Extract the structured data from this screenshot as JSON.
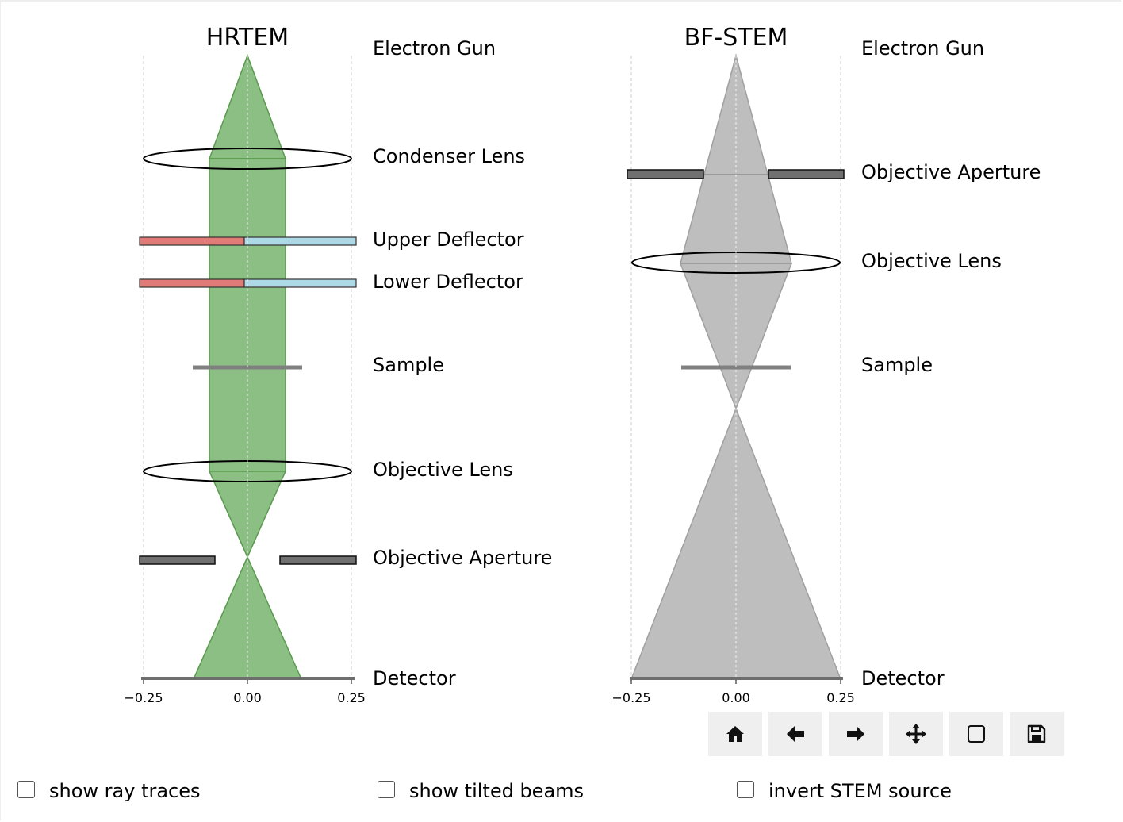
{
  "panels": [
    {
      "title": "HRTEM",
      "components": [
        {
          "label": "Electron Gun"
        },
        {
          "label": "Condenser Lens"
        },
        {
          "label": "Upper Deflector"
        },
        {
          "label": "Lower Deflector"
        },
        {
          "label": "Sample"
        },
        {
          "label": "Objective Lens"
        },
        {
          "label": "Objective Aperture"
        },
        {
          "label": "Detector"
        }
      ],
      "x_ticks": [
        "−0.25",
        "0.00",
        "0.25"
      ]
    },
    {
      "title": "BF-STEM",
      "components": [
        {
          "label": "Electron Gun"
        },
        {
          "label": "Objective Aperture"
        },
        {
          "label": "Objective Lens"
        },
        {
          "label": "Sample"
        },
        {
          "label": "Detector"
        }
      ],
      "x_ticks": [
        "−0.25",
        "0.00",
        "0.25"
      ]
    }
  ],
  "colors": {
    "hrtem_beam": "#8cbf84",
    "hrtem_beam_edge": "#5a9a4e",
    "stem_beam": "#bebebe",
    "stem_beam_edge": "#a0a0a0",
    "deflector_left": "#e07b78",
    "deflector_right": "#add8e6",
    "aperture": "#707070",
    "sample": "#808080"
  },
  "toolbar": [
    {
      "name": "home-button",
      "icon": "home-icon"
    },
    {
      "name": "back-button",
      "icon": "arrow-left-icon"
    },
    {
      "name": "forward-button",
      "icon": "arrow-right-icon"
    },
    {
      "name": "pan-button",
      "icon": "move-icon"
    },
    {
      "name": "zoom-button",
      "icon": "zoom-rect-icon"
    },
    {
      "name": "save-button",
      "icon": "save-icon"
    }
  ],
  "controls": [
    {
      "label": "show ray traces",
      "checked": false
    },
    {
      "label": "show tilted beams",
      "checked": false
    },
    {
      "label": "invert STEM source",
      "checked": false
    }
  ]
}
